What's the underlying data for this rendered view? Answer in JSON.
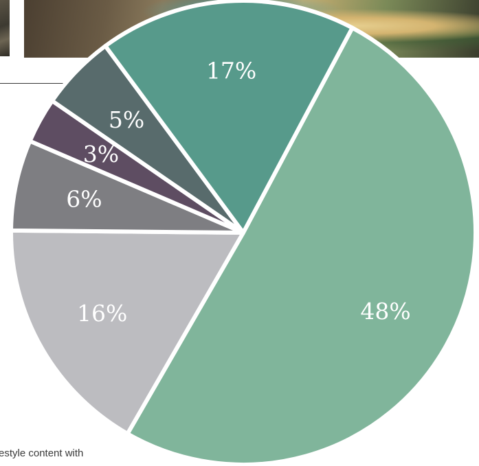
{
  "caption": "estyle content with",
  "chart_data": {
    "type": "pie",
    "title": "",
    "slices": [
      {
        "value": 48,
        "label": "48%",
        "color": "#80b59b"
      },
      {
        "value": 16,
        "label": "16%",
        "color": "#bcbcc0"
      },
      {
        "value": 6,
        "label": "6%",
        "color": "#7e7e82"
      },
      {
        "value": 3,
        "label": "3%",
        "color": "#5e4d62"
      },
      {
        "value": 5,
        "label": "5%",
        "color": "#586b6c"
      },
      {
        "value": 17,
        "label": "17%",
        "color": "#579a8b"
      }
    ],
    "legend": "none",
    "separator_color": "#ffffff"
  }
}
